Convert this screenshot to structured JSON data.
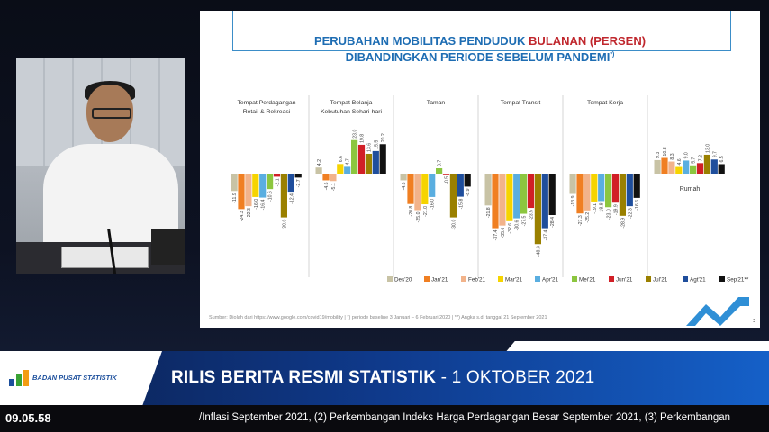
{
  "slide": {
    "title_line1_a": "PERUBAHAN MOBILITAS PENDUDUK ",
    "title_line1_b": "BULANAN (PERSEN)",
    "title_line2": "DIBANDINGKAN PERIODE SEBELUM PANDEMI",
    "title_sup": "*)",
    "source": "Sumber: Diolah dari https://www.google.com/covid19/mobility  |  *) periode baseline 3 Januari – 6 Februari 2020  |  **) Angka s.d. tanggal 21 September 2021",
    "page_number": "3"
  },
  "chart_data": {
    "type": "bar",
    "series_names": [
      "Des'20",
      "Jan'21",
      "Feb'21",
      "Mar'21",
      "Apr'21",
      "Mei'21",
      "Jun'21",
      "Jul'21",
      "Agt'21",
      "Sep'21**"
    ],
    "colors": [
      "#c8c3a5",
      "#f07f22",
      "#f2b38a",
      "#f6d400",
      "#5aaee0",
      "#8cc63f",
      "#d11f26",
      "#9a8000",
      "#1f4e9c",
      "#111111"
    ],
    "panels": [
      {
        "title": [
          "Tempat Perdagangan",
          "Retail & Rekreasi"
        ],
        "values": [
          -11.9,
          -24.3,
          -22.3,
          -16.0,
          -16.4,
          -10.6,
          -2.1,
          -30.0,
          -12.4,
          -2.7
        ]
      },
      {
        "title": [
          "Tempat Belanja",
          "Kebutuhan Sehari-hari"
        ],
        "values": [
          4.2,
          -4.6,
          -5.1,
          6.6,
          4.7,
          23.0,
          19.8,
          13.6,
          15.5,
          20.2
        ]
      },
      {
        "title": [
          "Taman"
        ],
        "values": [
          -4.6,
          -20.8,
          -25.0,
          -21.0,
          -16.0,
          3.7,
          -0.5,
          -30.0,
          -15.8,
          -8.9
        ]
      },
      {
        "title": [
          "Tempat Transit"
        ],
        "values": [
          -21.8,
          -37.4,
          -35.6,
          -32.6,
          -30.6,
          -27.5,
          -23.5,
          -48.3,
          -37.4,
          -28.4
        ]
      },
      {
        "title": [
          "Tempat Kerja"
        ],
        "values": [
          -13.9,
          -27.3,
          -25.2,
          -19.1,
          -18.8,
          -23.0,
          -19.9,
          -28.9,
          -22.3,
          -16.6
        ]
      },
      {
        "title_bottom": "Rumah",
        "values": [
          9.3,
          10.8,
          8.3,
          4.6,
          9.0,
          5.7,
          7.2,
          13.0,
          9.7,
          6.5
        ]
      }
    ]
  },
  "banner": {
    "org_name": "BADAN PUSAT STATISTIK",
    "headline_bold": "RILIS BERITA RESMI STATISTIK",
    "headline_rest": " - 1 OKTOBER 2021",
    "clock": "09.05.58",
    "ticker": "/Inflasi September 2021, (2) Perkembangan Indeks Harga Perdagangan Besar September 2021, (3) Perkembangan"
  }
}
